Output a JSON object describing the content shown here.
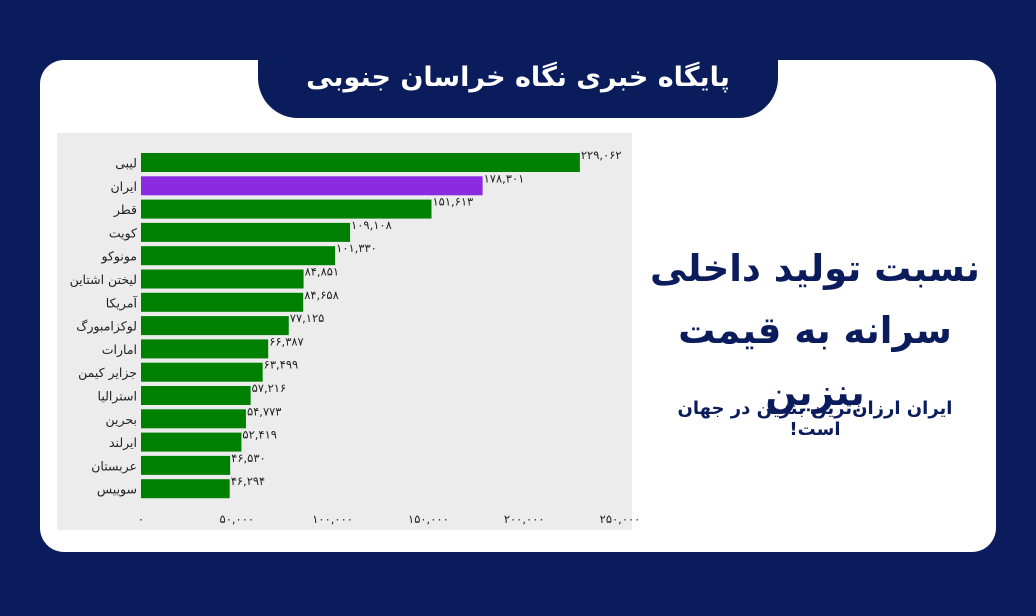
{
  "site_title": "پایگاه خبری نگاه خراسان جنوبی",
  "headline": {
    "line1": "نسبت تولید داخلی",
    "line2": "سرانه به قیمت بنزین"
  },
  "subline": "ایران ارزان‌ترین بنزین در جهان است!",
  "colors": {
    "background": "#0a1c5c",
    "bar_default": "#008000",
    "bar_highlight": "#8a2be2",
    "panel": "#ececec"
  },
  "chart_data": {
    "type": "bar",
    "orientation": "horizontal",
    "categories": [
      "لیبی",
      "ایران",
      "قطر",
      "کویت",
      "مونوکو",
      "لیختن اشتاین",
      "آمریکا",
      "لوکزامبورگ",
      "امارات",
      "جزایر کیمن",
      "استرالیا",
      "بحرین",
      "ایرلند",
      "عربستان",
      "سوییس"
    ],
    "values": [
      229062,
      178301,
      151613,
      109108,
      101330,
      84851,
      84658,
      77125,
      66387,
      63499,
      57216,
      54773,
      52419,
      46530,
      46294
    ],
    "value_labels": [
      "۲۲۹,۰۶۲",
      "۱۷۸,۳۰۱",
      "۱۵۱,۶۱۳",
      "۱۰۹,۱۰۸",
      "۱۰۱,۳۳۰",
      "۸۴,۸۵۱",
      "۸۴,۶۵۸",
      "۷۷,۱۲۵",
      "۶۶,۳۸۷",
      "۶۳,۴۹۹",
      "۵۷,۲۱۶",
      "۵۴,۷۷۳",
      "۵۲,۴۱۹",
      "۴۶,۵۳۰",
      "۴۶,۲۹۴"
    ],
    "highlight_category": "ایران",
    "xlim": [
      0,
      250000
    ],
    "x_ticks": [
      0,
      50000,
      100000,
      150000,
      200000,
      250000
    ],
    "x_tick_labels": [
      "۰",
      "۵۰,۰۰۰",
      "۱۰۰,۰۰۰",
      "۱۵۰,۰۰۰",
      "۲۰۰,۰۰۰",
      "۲۵۰,۰۰۰"
    ],
    "grid": false,
    "legend": "none"
  }
}
